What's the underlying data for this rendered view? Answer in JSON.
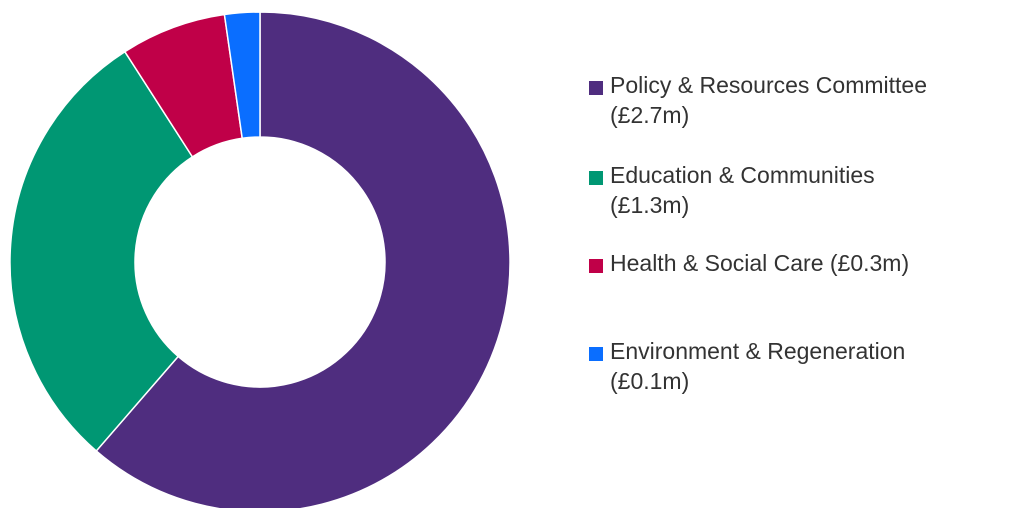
{
  "chart_data": {
    "type": "pie",
    "donut": true,
    "legend_position": "right",
    "slices": [
      {
        "label": "Policy & Resources Committee (£2.7m)",
        "value": 2.7,
        "color": "#4F2D7F"
      },
      {
        "label": "Education & Communities (£1.3m)",
        "value": 1.3,
        "color": "#009773"
      },
      {
        "label": "Health & Social Care (£0.3m)",
        "value": 0.3,
        "color": "#C00048"
      },
      {
        "label": "Environment & Regeneration (£0.1m)",
        "value": 0.1,
        "color": "#0A6EFF"
      }
    ]
  }
}
